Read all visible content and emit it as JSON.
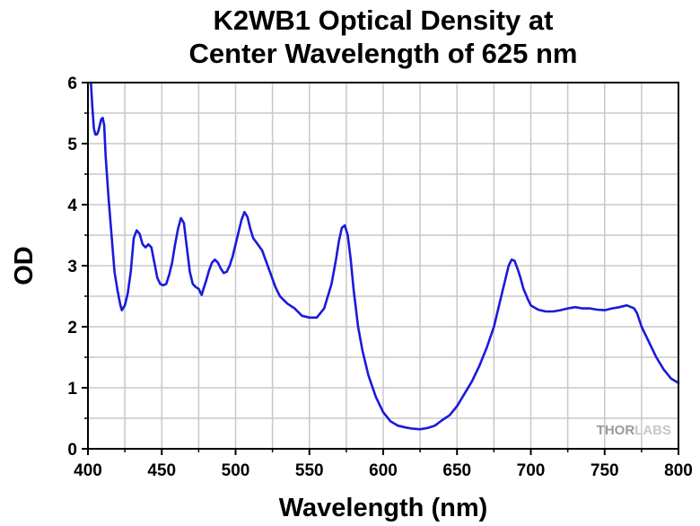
{
  "chart_data": {
    "type": "line",
    "title_lines": [
      "K2WB1 Optical Density at",
      "Center Wavelength of 625 nm"
    ],
    "xlabel": "Wavelength (nm)",
    "ylabel": "OD",
    "xlim": [
      400,
      800
    ],
    "ylim": [
      0,
      6
    ],
    "xticks": [
      400,
      450,
      500,
      550,
      600,
      650,
      700,
      750,
      800
    ],
    "yticks": [
      0,
      1,
      2,
      3,
      4,
      5,
      6
    ],
    "grid": true,
    "series": [
      {
        "color": "#1a1adc",
        "x": [
          402,
          403,
          404,
          405,
          406,
          407,
          408,
          409,
          410,
          411,
          412,
          414,
          416,
          418,
          420,
          422,
          423,
          425,
          427,
          429,
          431,
          433,
          435,
          437,
          439,
          441,
          443,
          445,
          447,
          449,
          451,
          453,
          455,
          457,
          459,
          461,
          463,
          465,
          467,
          469,
          471,
          473,
          475,
          477,
          478,
          480,
          482,
          484,
          486,
          488,
          490,
          492,
          494,
          496,
          498,
          500,
          502,
          504,
          506,
          508,
          510,
          512,
          515,
          518,
          521,
          524,
          527,
          530,
          535,
          540,
          545,
          550,
          555,
          560,
          565,
          568,
          570,
          572,
          574,
          576,
          578,
          580,
          583,
          586,
          590,
          595,
          600,
          605,
          610,
          615,
          620,
          625,
          630,
          635,
          640,
          645,
          650,
          655,
          660,
          665,
          670,
          675,
          678,
          681,
          683,
          685,
          687,
          689,
          691,
          693,
          695,
          698,
          700,
          705,
          710,
          715,
          720,
          725,
          730,
          735,
          740,
          745,
          750,
          755,
          760,
          765,
          768,
          770,
          772,
          775,
          780,
          785,
          790,
          795,
          800
        ],
        "y": [
          6.0,
          5.6,
          5.25,
          5.15,
          5.15,
          5.2,
          5.3,
          5.4,
          5.42,
          5.3,
          4.8,
          4.1,
          3.5,
          2.9,
          2.6,
          2.35,
          2.27,
          2.35,
          2.55,
          2.9,
          3.45,
          3.58,
          3.52,
          3.35,
          3.3,
          3.35,
          3.3,
          3.05,
          2.8,
          2.7,
          2.68,
          2.7,
          2.85,
          3.05,
          3.35,
          3.6,
          3.78,
          3.7,
          3.3,
          2.9,
          2.7,
          2.65,
          2.62,
          2.52,
          2.6,
          2.75,
          2.92,
          3.05,
          3.1,
          3.05,
          2.95,
          2.88,
          2.9,
          3.0,
          3.15,
          3.35,
          3.55,
          3.75,
          3.88,
          3.8,
          3.6,
          3.45,
          3.35,
          3.25,
          3.05,
          2.85,
          2.65,
          2.5,
          2.38,
          2.3,
          2.18,
          2.15,
          2.15,
          2.3,
          2.7,
          3.1,
          3.4,
          3.62,
          3.66,
          3.5,
          3.1,
          2.6,
          2.0,
          1.6,
          1.2,
          0.85,
          0.6,
          0.45,
          0.38,
          0.35,
          0.33,
          0.32,
          0.34,
          0.38,
          0.47,
          0.55,
          0.7,
          0.9,
          1.1,
          1.35,
          1.65,
          2.0,
          2.3,
          2.6,
          2.8,
          3.0,
          3.1,
          3.08,
          2.95,
          2.8,
          2.62,
          2.45,
          2.35,
          2.28,
          2.25,
          2.25,
          2.27,
          2.3,
          2.32,
          2.3,
          2.3,
          2.28,
          2.27,
          2.3,
          2.32,
          2.35,
          2.32,
          2.3,
          2.22,
          2.0,
          1.75,
          1.5,
          1.3,
          1.15,
          1.08
        ]
      }
    ]
  },
  "watermark": {
    "part1": "THOR",
    "part2": "LABS"
  }
}
